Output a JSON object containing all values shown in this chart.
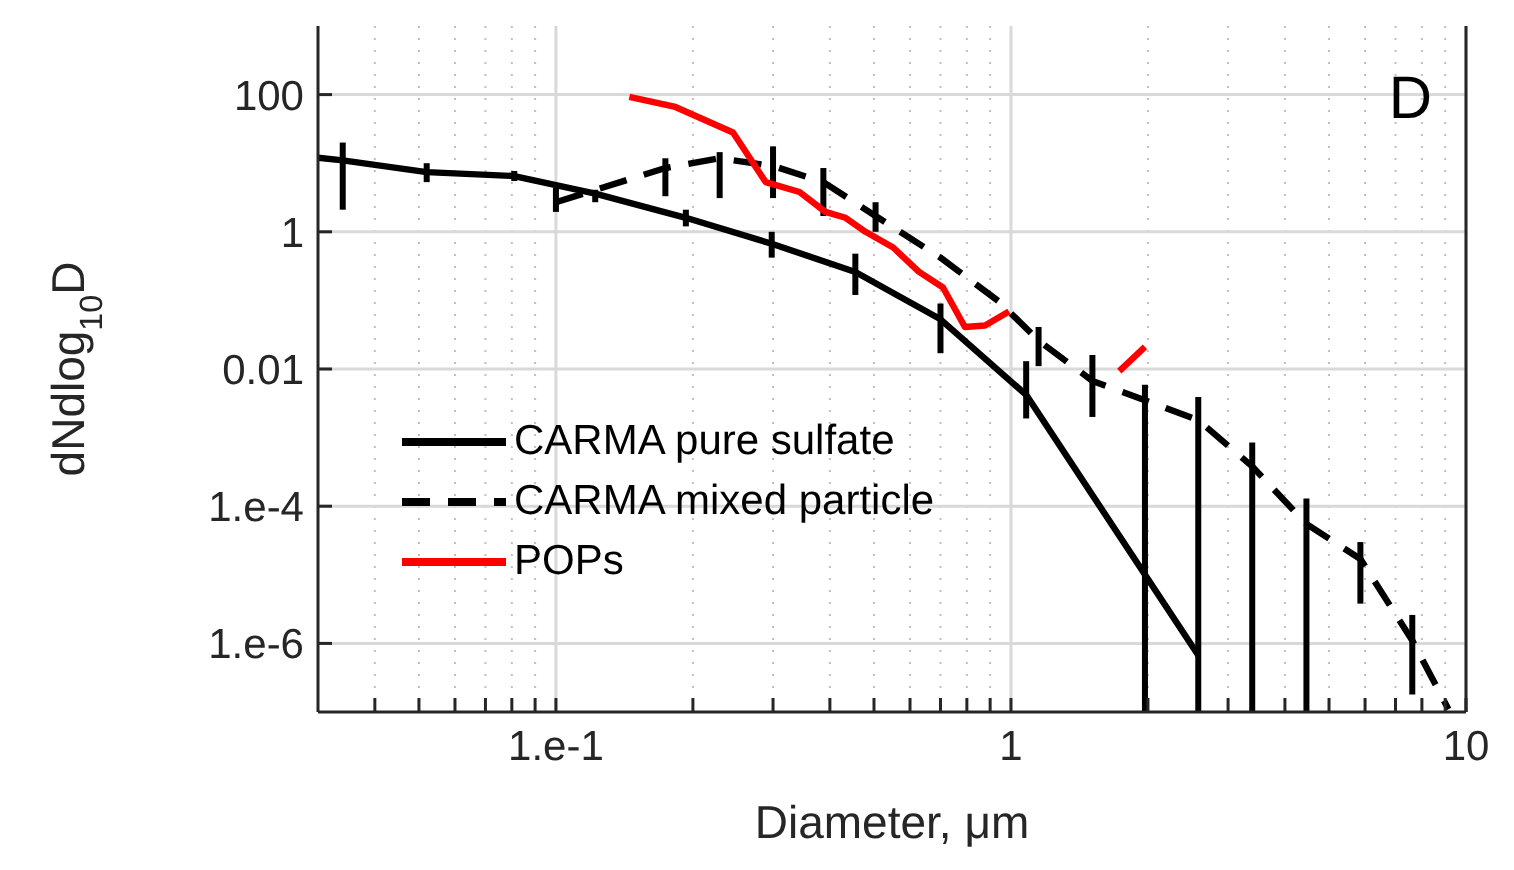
{
  "chart_data": {
    "type": "line",
    "xlabel": "Diameter, μm",
    "ylabel": "dNdlog$_{10}$D",
    "annotations": [
      "D"
    ],
    "log": "xy",
    "xlim": [
      0.03,
      10
    ],
    "ylim": [
      1e-07,
      1000
    ],
    "xticks": [
      {
        "value": 0.04,
        "label": null
      },
      {
        "value": 0.05,
        "label": null
      },
      {
        "value": 0.06,
        "label": null
      },
      {
        "value": 0.07,
        "label": null
      },
      {
        "value": 0.08,
        "label": null
      },
      {
        "value": 0.09,
        "label": null
      },
      {
        "value": 0.1,
        "label": "1.e-1"
      },
      {
        "value": 0.2,
        "label": null
      },
      {
        "value": 0.3,
        "label": null
      },
      {
        "value": 0.4,
        "label": null
      },
      {
        "value": 0.5,
        "label": null
      },
      {
        "value": 0.6,
        "label": null
      },
      {
        "value": 0.7,
        "label": null
      },
      {
        "value": 0.8,
        "label": null
      },
      {
        "value": 0.9,
        "label": null
      },
      1,
      {
        "value": 2,
        "label": null
      },
      {
        "value": 3,
        "label": null
      },
      {
        "value": 4,
        "label": null
      },
      {
        "value": 5,
        "label": null
      },
      {
        "value": 6,
        "label": null
      },
      {
        "value": 7,
        "label": null
      },
      {
        "value": 8,
        "label": null
      },
      {
        "value": 9,
        "label": null
      },
      10
    ],
    "yticks": [
      {
        "value": 1e-06,
        "label": "1.e-6"
      },
      {
        "value": 0.0001,
        "label": "1.e-4"
      },
      0.01,
      1,
      100
    ],
    "grid": true,
    "legend": "bottom left",
    "marker": "none",
    "series": [
      {
        "name": "CARMA pure sulfate",
        "color": "#000000",
        "line_style": "solid",
        "x": [
          0.03,
          0.034,
          0.052,
          0.081,
          0.122,
          0.193,
          0.298,
          0.455,
          0.7,
          1.08,
          2.58
        ],
        "values": [
          12,
          11,
          7.4,
          6.5,
          3.6,
          1.6,
          0.67,
          0.26,
          0.053,
          0.0042,
          6.7e-07
        ],
        "errors": [
          null,
          [
            2.1,
            20
          ],
          [
            5.3,
            10
          ],
          [
            5.5,
            7.7
          ],
          [
            2.7,
            4.1
          ],
          [
            1.2,
            2.1
          ],
          [
            0.42,
            1.0
          ],
          [
            0.12,
            0.48
          ],
          [
            0.017,
            0.09
          ],
          [
            0.0019,
            0.013
          ],
          null
        ]
      },
      {
        "name": "CARMA mixed particle",
        "color": "#000000",
        "line_style": "dashed",
        "x": [
          0.1,
          0.174,
          0.229,
          0.3,
          0.387,
          0.504,
          0.7,
          0.94,
          1.15,
          1.51,
          1.97,
          2.58,
          3.39,
          4.46,
          5.86,
          7.62,
          9.15
        ],
        "values": [
          2.7,
          8.5,
          11.8,
          9.1,
          5.3,
          1.7,
          0.42,
          0.097,
          0.026,
          0.0067,
          0.0035,
          0.0018,
          0.00038,
          5.5e-05,
          1.7e-05,
          1.1e-06,
          1.1e-07
        ],
        "errors": [
          [
            1.95,
            4.35
          ],
          [
            3.3,
            11.8
          ],
          [
            3.1,
            14.5
          ],
          [
            3.1,
            17.6
          ],
          [
            1.7,
            8.5
          ],
          [
            1.0,
            2.7
          ],
          null,
          null,
          [
            0.011,
            0.041
          ],
          [
            0.002,
            0.016
          ],
          [
            1e-07,
            0.0059
          ],
          [
            1e-07,
            0.0039
          ],
          [
            1e-07,
            0.00085
          ],
          [
            1e-07,
            0.00013
          ],
          [
            3.8e-06,
            3e-05
          ],
          [
            1.8e-07,
            2.6e-06
          ],
          null
        ]
      },
      {
        "name": "POPs",
        "color": "#ff0000",
        "line_style": "solid",
        "x": [
          0.145,
          0.182,
          0.245,
          0.289,
          0.343,
          0.391,
          0.433,
          0.479,
          0.551,
          0.628,
          0.709,
          0.792,
          0.877,
          0.99,
          1.3,
          1.73,
          1.97
        ],
        "values": [
          93,
          67,
          28,
          5.3,
          3.8,
          1.95,
          1.6,
          1,
          0.59,
          0.26,
          0.154,
          0.041,
          0.043,
          0.069,
          null,
          0.0093,
          0.021
        ]
      }
    ]
  }
}
